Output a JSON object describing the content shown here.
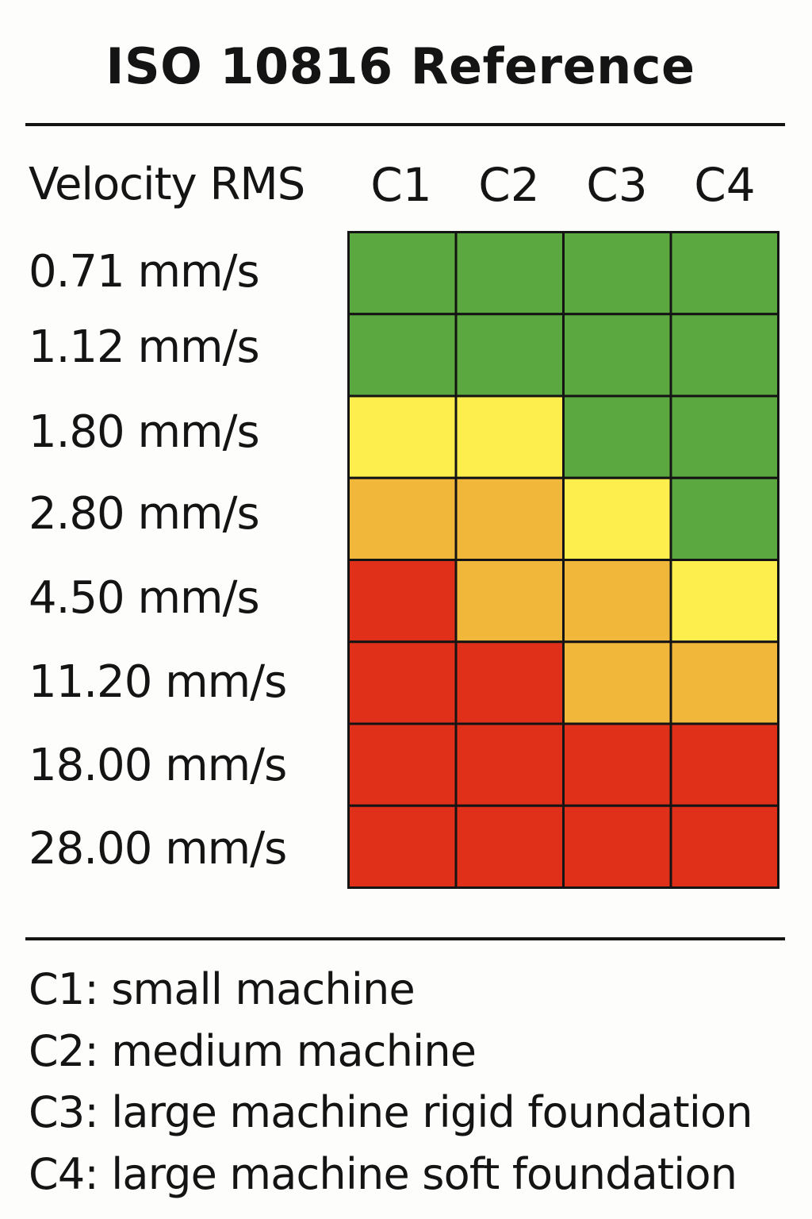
{
  "title": "ISO 10816 Reference",
  "colors": {
    "green": "#5aa83f",
    "yellow": "#fdee4d",
    "orange": "#f1b73a",
    "red": "#e0301a",
    "grid_line": "#141414"
  },
  "chart_data": {
    "type": "heatmap",
    "row_header": "Velocity RMS",
    "columns": [
      "C1",
      "C2",
      "C3",
      "C4"
    ],
    "rows": [
      "0.71 mm/s",
      "1.12 mm/s",
      "1.80 mm/s",
      "2.80 mm/s",
      "4.50 mm/s",
      "11.20 mm/s",
      "18.00 mm/s",
      "28.00 mm/s"
    ],
    "cells": [
      [
        "green",
        "green",
        "green",
        "green"
      ],
      [
        "green",
        "green",
        "green",
        "green"
      ],
      [
        "yellow",
        "yellow",
        "green",
        "green"
      ],
      [
        "orange",
        "orange",
        "yellow",
        "green"
      ],
      [
        "red",
        "orange",
        "orange",
        "yellow"
      ],
      [
        "red",
        "red",
        "orange",
        "orange"
      ],
      [
        "red",
        "red",
        "red",
        "red"
      ],
      [
        "red",
        "red",
        "red",
        "red"
      ]
    ]
  },
  "legend": [
    "C1: small machine",
    "C2: medium machine",
    "C3: large machine rigid foundation",
    "C4: large machine soft foundation"
  ]
}
